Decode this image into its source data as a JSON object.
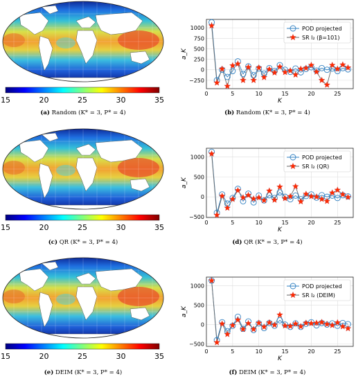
{
  "figure": {
    "colorbar": {
      "ticks": [
        "15",
        "20",
        "25",
        "30",
        "35"
      ],
      "stops": [
        "#00007f",
        "#0000ff",
        "#007fff",
        "#00ffff",
        "#7fff7f",
        "#ffff00",
        "#ff7f00",
        "#ff0000",
        "#7f0000"
      ]
    },
    "panels": [
      {
        "letter": "(a)",
        "method": "Random",
        "params": "(K* = 3, P* = 4)"
      },
      {
        "letter": "(b)",
        "method": "Random",
        "params": "(K* = 3, P* = 4)"
      },
      {
        "letter": "(c)",
        "method": "QR",
        "params": "(K* = 3, P* = 4)"
      },
      {
        "letter": "(d)",
        "method": "QR",
        "params": "(K* = 3, P* = 4)"
      },
      {
        "letter": "(e)",
        "method": "DEIM",
        "params": "(K* = 3, P* = 4)"
      },
      {
        "letter": "(f)",
        "method": "DEIM",
        "params": "(K* = 3, P* = 4)"
      }
    ]
  },
  "chart_data": [
    {
      "type": "line",
      "xlabel": "K",
      "ylabel": "a_K",
      "xticks": [
        "0",
        "5",
        "10",
        "15",
        "20",
        "25"
      ],
      "yticks": [
        "−250",
        "0",
        "250",
        "500",
        "750",
        "1000"
      ],
      "xlim": [
        0,
        28
      ],
      "ylim": [
        -450,
        1200
      ],
      "legend": {
        "placement": "top-right",
        "labels": [
          "POD projected",
          "SR l₂ (β=101)"
        ]
      },
      "x": [
        1,
        2,
        3,
        4,
        5,
        6,
        7,
        8,
        9,
        10,
        11,
        12,
        13,
        14,
        15,
        16,
        17,
        18,
        19,
        20,
        21,
        22,
        23,
        24,
        25,
        26,
        27
      ],
      "series": [
        {
          "name": "POD projected",
          "values": [
            1130,
            -250,
            0,
            -170,
            -30,
            200,
            -100,
            80,
            -130,
            30,
            -90,
            40,
            -30,
            110,
            0,
            -50,
            30,
            -60,
            20,
            60,
            -20,
            40,
            0,
            30,
            -30,
            40,
            10
          ]
        },
        {
          "name": "SR l₂ (β=101)",
          "values": [
            1050,
            -310,
            20,
            -390,
            100,
            140,
            -250,
            60,
            -250,
            50,
            -180,
            10,
            -70,
            70,
            -60,
            -20,
            -120,
            20,
            40,
            110,
            -50,
            -250,
            -360,
            110,
            20,
            120,
            50
          ]
        }
      ]
    },
    {
      "type": "line",
      "xlabel": "K",
      "ylabel": "a_K",
      "xticks": [
        "0",
        "5",
        "10",
        "15",
        "20",
        "25"
      ],
      "yticks": [
        "−500",
        "0",
        "500",
        "1000"
      ],
      "xlim": [
        0,
        28
      ],
      "ylim": [
        -520,
        1220
      ],
      "legend": {
        "placement": "top-right",
        "labels": [
          "POD projected",
          "SR l₂ (QR)"
        ]
      },
      "x": [
        1,
        2,
        3,
        4,
        5,
        6,
        7,
        8,
        9,
        10,
        11,
        12,
        13,
        14,
        15,
        16,
        17,
        18,
        19,
        20,
        21,
        22,
        23,
        24,
        25,
        26,
        27
      ],
      "series": [
        {
          "name": "POD projected",
          "values": [
            1130,
            -400,
            60,
            -170,
            -30,
            200,
            -110,
            80,
            -140,
            30,
            -90,
            40,
            -30,
            110,
            0,
            -60,
            30,
            -60,
            20,
            60,
            -20,
            40,
            0,
            30,
            -30,
            40,
            10
          ]
        },
        {
          "name": "SR l₂ (QR)",
          "values": [
            1080,
            -460,
            20,
            -280,
            -60,
            160,
            -20,
            40,
            -50,
            -20,
            -90,
            150,
            -80,
            250,
            -40,
            10,
            260,
            -120,
            70,
            10,
            0,
            -60,
            -110,
            100,
            170,
            60,
            -10
          ]
        }
      ]
    },
    {
      "type": "line",
      "xlabel": "K",
      "ylabel": "a_K",
      "xticks": [
        "0",
        "5",
        "10",
        "15",
        "20",
        "25"
      ],
      "yticks": [
        "−500",
        "0",
        "500",
        "1000"
      ],
      "xlim": [
        0,
        28
      ],
      "ylim": [
        -560,
        1220
      ],
      "legend": {
        "placement": "top-right",
        "labels": [
          "POD projected",
          "SR l₂ (DEIM)"
        ]
      },
      "x": [
        1,
        2,
        3,
        4,
        5,
        6,
        7,
        8,
        9,
        10,
        11,
        12,
        13,
        14,
        15,
        16,
        17,
        18,
        19,
        20,
        21,
        22,
        23,
        24,
        25,
        26,
        27
      ],
      "series": [
        {
          "name": "POD projected",
          "values": [
            1130,
            -400,
            60,
            -170,
            -30,
            200,
            -110,
            80,
            -140,
            30,
            -90,
            40,
            -30,
            110,
            0,
            -60,
            30,
            -60,
            20,
            60,
            -20,
            40,
            0,
            30,
            -30,
            40,
            10
          ]
        },
        {
          "name": "SR l₂ (DEIM)",
          "values": [
            1130,
            -460,
            20,
            -250,
            -20,
            120,
            -120,
            30,
            -120,
            40,
            -60,
            50,
            -10,
            250,
            -30,
            -40,
            20,
            -50,
            40,
            30,
            40,
            60,
            10,
            -20,
            50,
            -50,
            -100
          ]
        }
      ]
    }
  ]
}
